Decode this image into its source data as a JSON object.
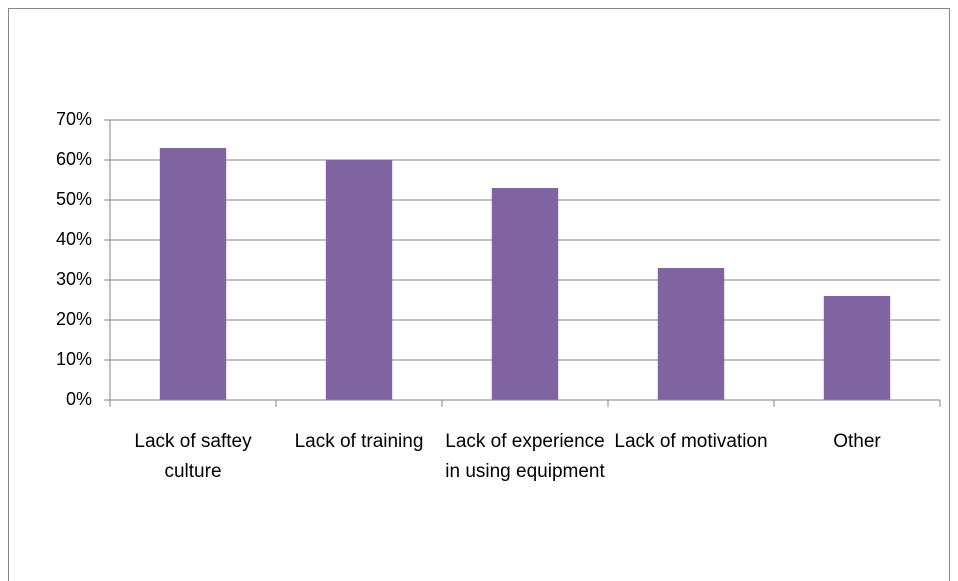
{
  "chart_data": {
    "type": "bar",
    "categories": [
      "Lack of saftey culture",
      "Lack of training",
      "Lack of experience in using equipment",
      "Lack of motivation",
      "Other"
    ],
    "values": [
      63,
      60,
      53,
      33,
      26
    ],
    "color": "#8064a2",
    "ylim": [
      0,
      70
    ],
    "yticks": [
      {
        "value": 0,
        "label": "0%"
      },
      {
        "value": 10,
        "label": "10%"
      },
      {
        "value": 20,
        "label": "20%"
      },
      {
        "value": 30,
        "label": "30%"
      },
      {
        "value": 40,
        "label": "40%"
      },
      {
        "value": 50,
        "label": "50%"
      },
      {
        "value": 60,
        "label": "60%"
      },
      {
        "value": 70,
        "label": "70%"
      }
    ],
    "grid": true
  }
}
